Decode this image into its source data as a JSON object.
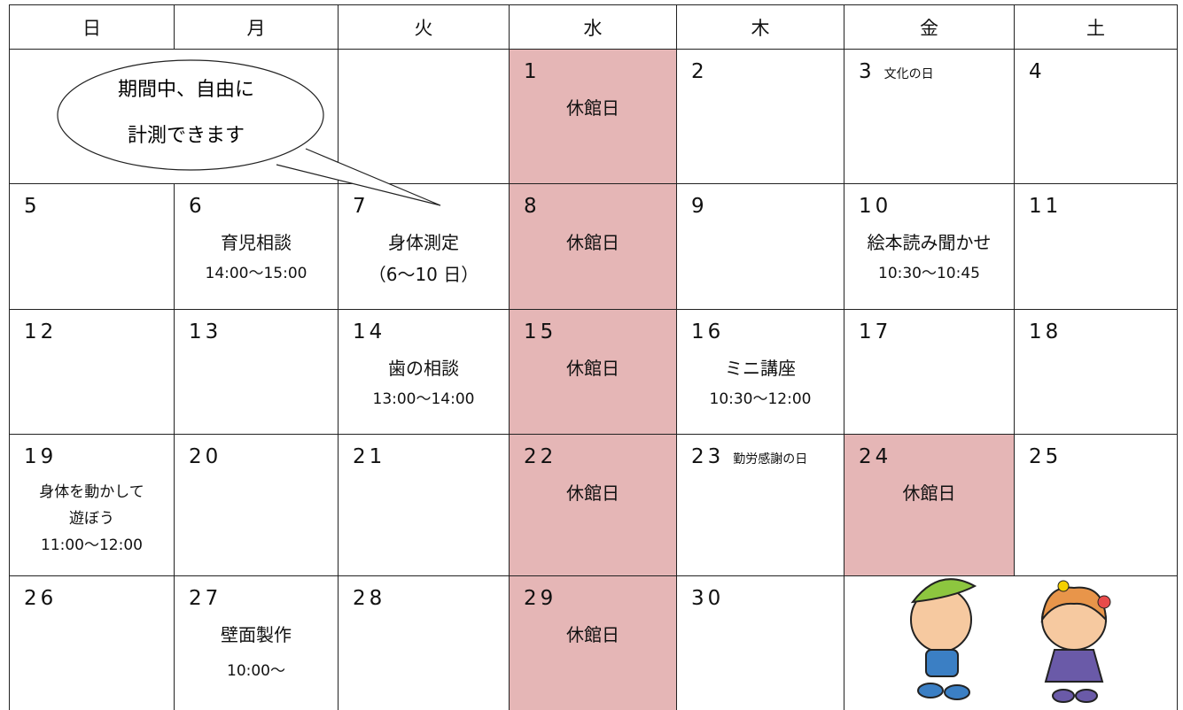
{
  "header": [
    "日",
    "月",
    "火",
    "水",
    "木",
    "金",
    "土"
  ],
  "bubble": [
    "期間中、自由に",
    "計測できます"
  ],
  "weeks": [
    [
      null,
      null,
      null,
      {
        "day": "1",
        "lines": [
          "休館日"
        ],
        "shaded": true
      },
      {
        "day": "2"
      },
      {
        "day": "3",
        "note": "文化の日"
      },
      {
        "day": "4"
      }
    ],
    [
      {
        "day": "5"
      },
      {
        "day": "6",
        "lines": [
          "育児相談",
          "14:00〜15:00"
        ]
      },
      {
        "day": "7",
        "lines": [
          "身体測定",
          "（6〜10 日）"
        ]
      },
      {
        "day": "8",
        "lines": [
          "休館日"
        ],
        "shaded": true
      },
      {
        "day": "9"
      },
      {
        "day": "10",
        "lines": [
          "絵本読み聞かせ",
          "10:30〜10:45"
        ]
      },
      {
        "day": "11"
      }
    ],
    [
      {
        "day": "12"
      },
      {
        "day": "13"
      },
      {
        "day": "14",
        "lines": [
          "歯の相談",
          "13:00〜14:00"
        ]
      },
      {
        "day": "15",
        "lines": [
          "休館日"
        ],
        "shaded": true
      },
      {
        "day": "16",
        "lines": [
          "ミニ講座",
          "10:30〜12:00"
        ]
      },
      {
        "day": "17"
      },
      {
        "day": "18"
      }
    ],
    [
      {
        "day": "19",
        "lines": [
          "身体を動かして",
          "遊ぼう",
          "11:00〜12:00"
        ]
      },
      {
        "day": "20"
      },
      {
        "day": "21"
      },
      {
        "day": "22",
        "lines": [
          "休館日"
        ],
        "shaded": true
      },
      {
        "day": "23",
        "note": "勤労感謝の日"
      },
      {
        "day": "24",
        "lines": [
          "休館日"
        ],
        "shaded": true
      },
      {
        "day": "25"
      }
    ],
    [
      {
        "day": "26"
      },
      {
        "day": "27",
        "lines": [
          "壁面製作",
          "10:00〜"
        ]
      },
      {
        "day": "28"
      },
      {
        "day": "29",
        "lines": [
          "休館日"
        ],
        "shaded": true
      },
      {
        "day": "30"
      },
      null,
      null
    ]
  ]
}
